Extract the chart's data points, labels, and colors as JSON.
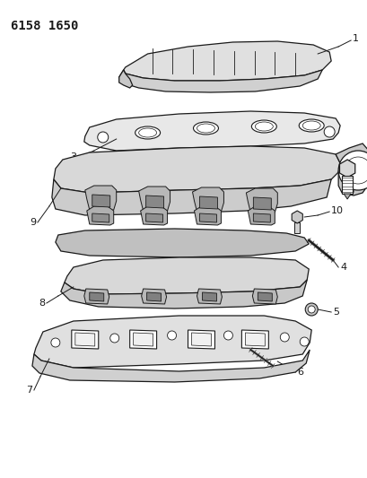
{
  "title_code": "6158 1650",
  "bg_color": "#ffffff",
  "line_color": "#1a1a1a",
  "fill_light": "#e8e8e8",
  "fill_mid": "#d0d0d0",
  "fill_dark": "#b8b8b8"
}
